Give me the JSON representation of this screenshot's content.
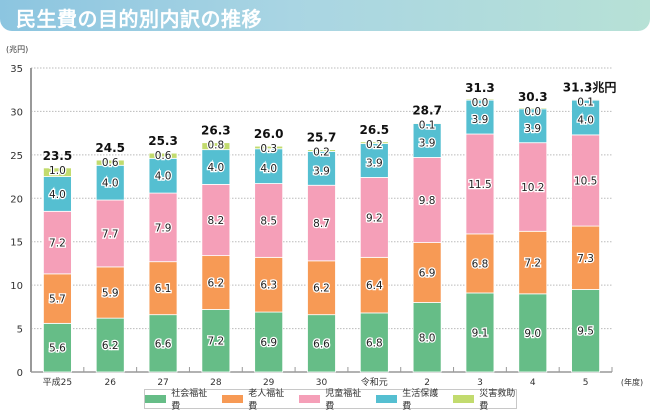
{
  "header": {
    "title": "民生費の目的別内訳の推移"
  },
  "chart_data": {
    "type": "bar",
    "stacked": true,
    "title": "民生費の目的別内訳の推移",
    "ylabel": "(兆円)",
    "xlabel": "(年度)",
    "ylim": [
      0,
      35
    ],
    "yticks": [
      0,
      5,
      10,
      15,
      20,
      25,
      30,
      35
    ],
    "grid": true,
    "legend_position": "bottom",
    "categories": [
      "平成25",
      "26",
      "27",
      "28",
      "29",
      "30",
      "令和元",
      "2",
      "3",
      "4",
      "5"
    ],
    "series": [
      {
        "name": "社会福祉費",
        "color": "#66bd87",
        "values": [
          5.6,
          6.2,
          6.6,
          7.2,
          6.9,
          6.6,
          6.8,
          8.0,
          9.1,
          9.0,
          9.5
        ]
      },
      {
        "name": "老人福祉費",
        "color": "#f79a55",
        "values": [
          5.7,
          5.9,
          6.1,
          6.2,
          6.3,
          6.2,
          6.4,
          6.9,
          6.8,
          7.2,
          7.3
        ]
      },
      {
        "name": "児童福祉費",
        "color": "#f59fb8",
        "values": [
          7.2,
          7.7,
          7.9,
          8.2,
          8.5,
          8.7,
          9.2,
          9.8,
          11.5,
          10.2,
          10.5
        ]
      },
      {
        "name": "生活保護費",
        "color": "#55bfd1",
        "values": [
          4.0,
          4.0,
          4.0,
          4.0,
          4.0,
          3.9,
          3.9,
          3.9,
          3.9,
          3.9,
          4.0
        ]
      },
      {
        "name": "災害救助費",
        "color": "#c2db6e",
        "values": [
          1.0,
          0.6,
          0.6,
          0.8,
          0.3,
          0.2,
          0.2,
          0.1,
          0.0,
          0.0,
          0.1
        ]
      }
    ],
    "totals": [
      "23.5",
      "24.5",
      "25.3",
      "26.3",
      "26.0",
      "25.7",
      "26.5",
      "28.7",
      "31.3",
      "30.3",
      "31.3兆円"
    ]
  }
}
